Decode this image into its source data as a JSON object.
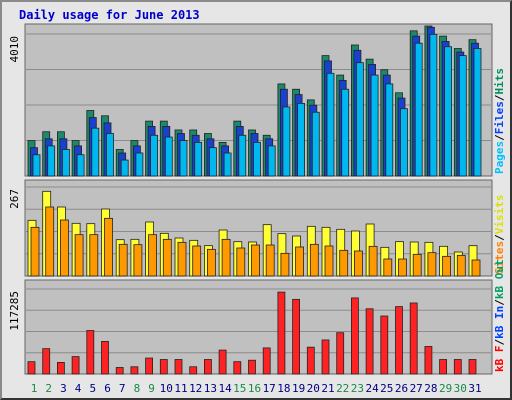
{
  "chart_data": {
    "type": "bar",
    "title": "Daily usage for June 2013",
    "categories": [
      "1",
      "2",
      "3",
      "4",
      "5",
      "6",
      "7",
      "8",
      "9",
      "10",
      "11",
      "12",
      "13",
      "14",
      "15",
      "16",
      "17",
      "18",
      "19",
      "20",
      "21",
      "22",
      "23",
      "24",
      "25",
      "26",
      "27",
      "28",
      "29",
      "30",
      "31"
    ],
    "weekend_days": [
      "1",
      "2",
      "8",
      "9",
      "15",
      "16",
      "22",
      "23",
      "29",
      "30"
    ],
    "panels": [
      {
        "id": "hits-panel",
        "tick_label": "4010",
        "tick_value": 4010,
        "axis_labels": [
          "Pages",
          "/",
          "Files",
          "/",
          "Hits"
        ],
        "axis_colors": [
          "#00c0ff",
          "#000000",
          "#0040ff",
          "#000000",
          "#009060"
        ],
        "series": [
          {
            "name": "Hits",
            "color": "#1a8a6a",
            "values": [
              1000,
              1250,
              1250,
              1000,
              1850,
              1700,
              750,
              1000,
              1550,
              1550,
              1300,
              1300,
              1200,
              950,
              1550,
              1300,
              1150,
              2600,
              2450,
              2150,
              3400,
              2850,
              3700,
              3300,
              3000,
              2350,
              4100,
              4350,
              3950,
              3600,
              3850
            ]
          },
          {
            "name": "Files",
            "color": "#1a40d0",
            "values": [
              800,
              1050,
              1050,
              850,
              1650,
              1500,
              650,
              850,
              1400,
              1400,
              1200,
              1150,
              1050,
              850,
              1400,
              1200,
              1050,
              2450,
              2300,
              2000,
              3250,
              2700,
              3550,
              3150,
              2850,
              2200,
              3950,
              4200,
              3800,
              3500,
              3750
            ]
          },
          {
            "name": "Pages",
            "color": "#00b8f0",
            "values": [
              600,
              850,
              750,
              600,
              1350,
              1200,
              450,
              650,
              1150,
              1100,
              1000,
              950,
              800,
              650,
              1150,
              950,
              850,
              1950,
              2050,
              1800,
              2900,
              2450,
              3200,
              2850,
              2600,
              1900,
              3750,
              4000,
              3650,
              3400,
              3600
            ]
          }
        ]
      },
      {
        "id": "visits-panel",
        "tick_label": "267",
        "tick_value": 267,
        "axis_labels": [
          "Sites",
          "/",
          "Visits"
        ],
        "axis_colors": [
          "#ff8000",
          "#000000",
          "#e0e000"
        ],
        "series": [
          {
            "name": "Visits",
            "color": "#ffff33",
            "values": [
              167,
              254,
              207,
              158,
              157,
              201,
              109,
              110,
              162,
              128,
              114,
              107,
              91,
              138,
              103,
              102,
              154,
              127,
              120,
              149,
              146,
              140,
              135,
              156,
              86,
              103,
              102,
              101,
              89,
              72,
              91
            ]
          },
          {
            "name": "Sites",
            "color": "#ff9900",
            "values": [
              146,
              207,
              168,
              124,
              124,
              173,
              95,
              94,
              124,
              110,
              101,
              90,
              80,
              110,
              84,
              93,
              93,
              68,
              87,
              95,
              90,
              77,
              75,
              89,
              51,
              51,
              65,
              70,
              59,
              62,
              48
            ]
          }
        ]
      },
      {
        "id": "kbytes-panel",
        "tick_label": "117285",
        "tick_value": 117285,
        "axis_labels": [
          "kB F",
          "/",
          "kB In",
          "/",
          "kB Out"
        ],
        "axis_colors": [
          "#ff0000",
          "#000000",
          "#0040ff",
          "#000000",
          "#00a060"
        ],
        "series": [
          {
            "name": "kB F",
            "color": "#ff2222",
            "values": [
              17000,
              35000,
              16000,
              24000,
              60000,
              45000,
              9000,
              10000,
              22000,
              20000,
              20000,
              10000,
              20000,
              33000,
              17000,
              19000,
              36000,
              113000,
              103000,
              37000,
              47000,
              57000,
              105000,
              90000,
              80000,
              93000,
              98000,
              38000,
              20000,
              20000,
              20000
            ]
          }
        ]
      }
    ]
  }
}
